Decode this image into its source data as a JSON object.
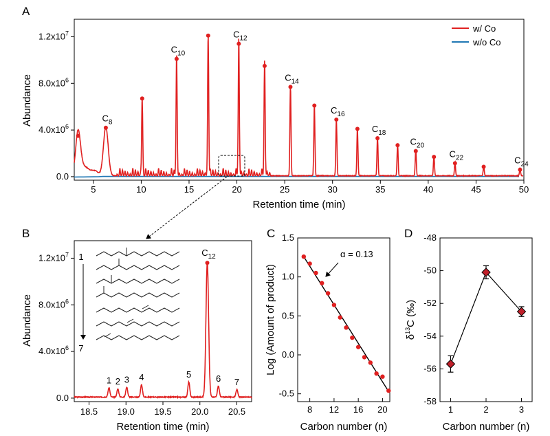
{
  "chart_data": [
    {
      "panel": "A",
      "type": "line",
      "xlabel": "Retention time (min)",
      "ylabel": "Abundance",
      "xlim": [
        3,
        50
      ],
      "ylim": [
        -300000,
        13500000
      ],
      "xticks": [
        5,
        10,
        15,
        20,
        25,
        30,
        35,
        40,
        45,
        50
      ],
      "ytick_labels": [
        {
          "value": 0,
          "text": "0.0"
        },
        {
          "value": 4000000,
          "text": "4.0x10",
          "sup": "6"
        },
        {
          "value": 8000000,
          "text": "8.0x10",
          "sup": "6"
        },
        {
          "value": 12000000,
          "text": "1.2x10",
          "sup": "7"
        }
      ],
      "legend": {
        "position": "top-right",
        "entries": [
          {
            "name": "w/ Co",
            "color": "#e02020"
          },
          {
            "name": "w/o Co",
            "color": "#1f77b4"
          }
        ]
      },
      "series": [
        {
          "name": "w/ Co",
          "color": "#e02020"
        },
        {
          "name": "w/o Co",
          "color": "#1f77b4"
        }
      ],
      "peaks": [
        {
          "x": 3.4,
          "y": 3500000
        },
        {
          "x": 6.3,
          "y": 4200000,
          "label": "C",
          "sub": "8"
        },
        {
          "x": 10.1,
          "y": 6700000
        },
        {
          "x": 13.7,
          "y": 10100000,
          "label": "C",
          "sub": "10"
        },
        {
          "x": 17.0,
          "y": 12100000
        },
        {
          "x": 20.2,
          "y": 11400000,
          "label": "C",
          "sub": "12"
        },
        {
          "x": 22.9,
          "y": 9500000
        },
        {
          "x": 25.6,
          "y": 7700000,
          "label": "C",
          "sub": "14"
        },
        {
          "x": 28.1,
          "y": 6100000
        },
        {
          "x": 30.4,
          "y": 4900000,
          "label": "C",
          "sub": "16"
        },
        {
          "x": 32.6,
          "y": 4100000
        },
        {
          "x": 34.7,
          "y": 3300000,
          "label": "C",
          "sub": "18"
        },
        {
          "x": 36.8,
          "y": 2700000
        },
        {
          "x": 38.7,
          "y": 2200000,
          "label": "C",
          "sub": "20"
        },
        {
          "x": 40.6,
          "y": 1700000
        },
        {
          "x": 42.8,
          "y": 1150000,
          "label": "C",
          "sub": "22"
        },
        {
          "x": 45.8,
          "y": 850000
        },
        {
          "x": 49.6,
          "y": 600000,
          "label": "C",
          "sub": "24"
        }
      ]
    },
    {
      "panel": "B",
      "type": "line",
      "xlabel": "Retention time (min)",
      "ylabel": "Abundance",
      "xlim": [
        18.3,
        20.7
      ],
      "ylim": [
        -300000,
        13500000
      ],
      "xticks": [
        18.5,
        19.0,
        19.5,
        20.0,
        20.5
      ],
      "ytick_labels": [
        {
          "value": 0,
          "text": "0.0"
        },
        {
          "value": 4000000,
          "text": "4.0x10",
          "sup": "6"
        },
        {
          "value": 8000000,
          "text": "8.0x10",
          "sup": "6"
        },
        {
          "value": 12000000,
          "text": "1.2x10",
          "sup": "7"
        }
      ],
      "series": [
        {
          "name": "w/ Co",
          "color": "#e02020"
        }
      ],
      "peaks": [
        {
          "x": 18.77,
          "y": 800000,
          "label": "1"
        },
        {
          "x": 18.89,
          "y": 700000,
          "label": "2"
        },
        {
          "x": 19.01,
          "y": 850000,
          "label": "3"
        },
        {
          "x": 19.21,
          "y": 1050000,
          "label": "4"
        },
        {
          "x": 19.85,
          "y": 1300000,
          "label": "5"
        },
        {
          "x": 20.1,
          "y": 11600000,
          "label": "C",
          "sub": "12"
        },
        {
          "x": 20.25,
          "y": 950000,
          "label": "6"
        },
        {
          "x": 20.5,
          "y": 650000,
          "label": "7"
        }
      ],
      "inset_arrow": {
        "from": "1",
        "to": "7"
      }
    },
    {
      "panel": "C",
      "type": "scatter",
      "xlabel": "Carbon number (n)",
      "ylabel": "Log (Amount of product)",
      "xlim": [
        6,
        21.2
      ],
      "ylim": [
        -0.6,
        1.5
      ],
      "xticks": [
        8,
        12,
        16,
        20
      ],
      "yticks": [
        "-0.5",
        "0.0",
        "0.5",
        "1.0",
        "1.5"
      ],
      "annotation": "α = 0.13",
      "fit": [
        {
          "x": 7,
          "y": 1.26
        },
        {
          "x": 21,
          "y": -0.47
        }
      ],
      "x": [
        7,
        8,
        9,
        10,
        11,
        12,
        13,
        14,
        15,
        16,
        17,
        18,
        19,
        20,
        21
      ],
      "y": [
        1.26,
        1.17,
        1.05,
        0.92,
        0.79,
        0.64,
        0.48,
        0.35,
        0.22,
        0.1,
        -0.03,
        -0.1,
        -0.24,
        -0.28,
        -0.46
      ]
    },
    {
      "panel": "D",
      "type": "line",
      "xlabel": "Carbon number (n)",
      "ylabel": "δ13C (‰)",
      "ylabel_parts": {
        "pre": "δ",
        "sup": "13",
        "post": "C (‰)"
      },
      "xlim": [
        0.7,
        3.3
      ],
      "ylim": [
        -58,
        -48
      ],
      "xticks": [
        1,
        2,
        3
      ],
      "yticks": [
        -58,
        -56,
        -54,
        -52,
        -50,
        -48
      ],
      "x": [
        1,
        2,
        3
      ],
      "y": [
        -55.7,
        -50.1,
        -52.5
      ],
      "err": [
        0.5,
        0.4,
        0.3
      ]
    }
  ]
}
